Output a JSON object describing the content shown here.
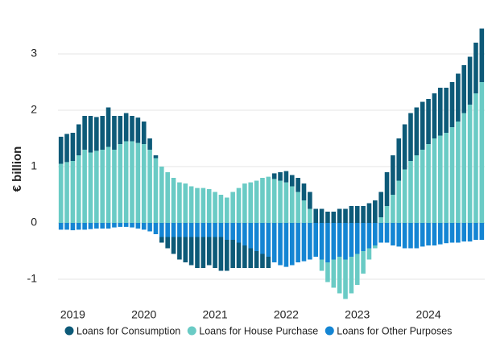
{
  "chart_data": {
    "type": "bar",
    "stacked": true,
    "y_label": "€ billion",
    "categories": [
      null,
      null,
      "2019",
      null,
      null,
      null,
      null,
      null,
      null,
      null,
      null,
      null,
      null,
      null,
      "2020",
      null,
      null,
      null,
      null,
      null,
      null,
      null,
      null,
      null,
      null,
      null,
      "2021",
      null,
      null,
      null,
      null,
      null,
      null,
      null,
      null,
      null,
      null,
      null,
      "2022",
      null,
      null,
      null,
      null,
      null,
      null,
      null,
      null,
      null,
      null,
      null,
      "2023",
      null,
      null,
      null,
      null,
      null,
      null,
      null,
      null,
      null,
      null,
      null,
      "2024",
      null,
      null,
      null,
      null,
      null,
      null,
      null,
      null,
      null
    ],
    "series": [
      {
        "name": "Loans for Consumption",
        "color": "#0d5a78",
        "values": [
          0.48,
          0.5,
          0.5,
          0.55,
          0.6,
          0.65,
          0.6,
          0.6,
          0.7,
          0.6,
          0.5,
          0.5,
          0.45,
          0.45,
          0.4,
          0.2,
          0.05,
          -0.1,
          -0.2,
          -0.3,
          -0.4,
          -0.45,
          -0.5,
          -0.55,
          -0.55,
          -0.5,
          -0.55,
          -0.6,
          -0.55,
          -0.5,
          -0.45,
          -0.4,
          -0.35,
          -0.3,
          -0.25,
          -0.2,
          0.1,
          0.15,
          0.2,
          0.2,
          0.25,
          0.3,
          0.3,
          0.25,
          0.25,
          0.2,
          0.2,
          0.25,
          0.25,
          0.3,
          0.3,
          0.3,
          0.35,
          0.4,
          0.45,
          0.6,
          0.7,
          0.75,
          0.8,
          0.85,
          0.85,
          0.85,
          0.8,
          0.8,
          0.85,
          0.8,
          0.8,
          0.85,
          0.85,
          0.85,
          0.9,
          0.95
        ]
      },
      {
        "name": "Loans for House Purchase",
        "color": "#6acbc5",
        "values": [
          1.05,
          1.08,
          1.1,
          1.2,
          1.3,
          1.25,
          1.28,
          1.3,
          1.35,
          1.3,
          1.4,
          1.45,
          1.45,
          1.42,
          1.4,
          1.3,
          1.15,
          1.0,
          0.9,
          0.8,
          0.72,
          0.7,
          0.65,
          0.62,
          0.62,
          0.6,
          0.55,
          0.5,
          0.45,
          0.55,
          0.62,
          0.7,
          0.72,
          0.75,
          0.8,
          0.82,
          0.78,
          0.75,
          0.72,
          0.65,
          0.55,
          0.4,
          0.25,
          0.0,
          -0.2,
          -0.35,
          -0.5,
          -0.65,
          -0.7,
          -0.65,
          -0.55,
          -0.4,
          -0.2,
          -0.05,
          0.1,
          0.3,
          0.5,
          0.75,
          0.95,
          1.1,
          1.2,
          1.3,
          1.4,
          1.5,
          1.55,
          1.6,
          1.7,
          1.8,
          1.95,
          2.1,
          2.3,
          2.5
        ]
      },
      {
        "name": "Loans for Other Purposes",
        "color": "#1485d3",
        "values": [
          -0.12,
          -0.12,
          -0.13,
          -0.12,
          -0.12,
          -0.11,
          -0.1,
          -0.1,
          -0.1,
          -0.08,
          -0.07,
          -0.07,
          -0.08,
          -0.1,
          -0.12,
          -0.15,
          -0.2,
          -0.25,
          -0.25,
          -0.25,
          -0.25,
          -0.25,
          -0.25,
          -0.25,
          -0.25,
          -0.25,
          -0.25,
          -0.25,
          -0.3,
          -0.3,
          -0.35,
          -0.4,
          -0.45,
          -0.5,
          -0.55,
          -0.6,
          -0.7,
          -0.75,
          -0.78,
          -0.75,
          -0.7,
          -0.68,
          -0.65,
          -0.6,
          -0.65,
          -0.7,
          -0.65,
          -0.6,
          -0.65,
          -0.6,
          -0.55,
          -0.5,
          -0.45,
          -0.4,
          -0.35,
          -0.35,
          -0.4,
          -0.42,
          -0.45,
          -0.45,
          -0.45,
          -0.42,
          -0.4,
          -0.4,
          -0.38,
          -0.36,
          -0.35,
          -0.35,
          -0.33,
          -0.33,
          -0.3,
          -0.3
        ]
      }
    ],
    "ylim": [
      -1.4,
      3.6
    ],
    "yticks": [
      -1,
      0,
      1,
      2,
      3
    ],
    "grid": true
  }
}
